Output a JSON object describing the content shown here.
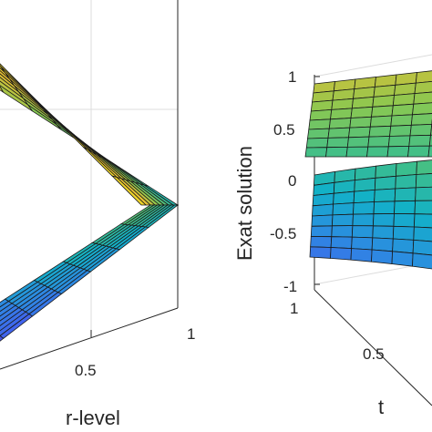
{
  "chart_data": [
    {
      "type": "surface",
      "xlabel": "r-level",
      "x_ticks": [
        "0.5",
        "1"
      ],
      "grid": true,
      "note_surfaces": "lower and upper bounds of a fuzzy solution meet at r-level 1",
      "series": [
        {
          "name": "",
          "colormap": "parula",
          "r": [
            0,
            0.125,
            0.25,
            0.375,
            0.5,
            0.625,
            0.75,
            0.875,
            1
          ],
          "t": [
            0,
            0.125,
            0.25,
            0.375,
            0.5,
            0.625,
            0.75,
            0.875,
            1
          ]
        }
      ]
    },
    {
      "type": "surface",
      "zlabel": "Exat solution",
      "xlabel": "t",
      "z_ticks": [
        "1",
        "0.5",
        "0",
        "-0.5",
        "-1"
      ],
      "zlim": [
        -1,
        1
      ],
      "t_ticks": [
        "1",
        "0.5"
      ],
      "grid": true
    }
  ]
}
